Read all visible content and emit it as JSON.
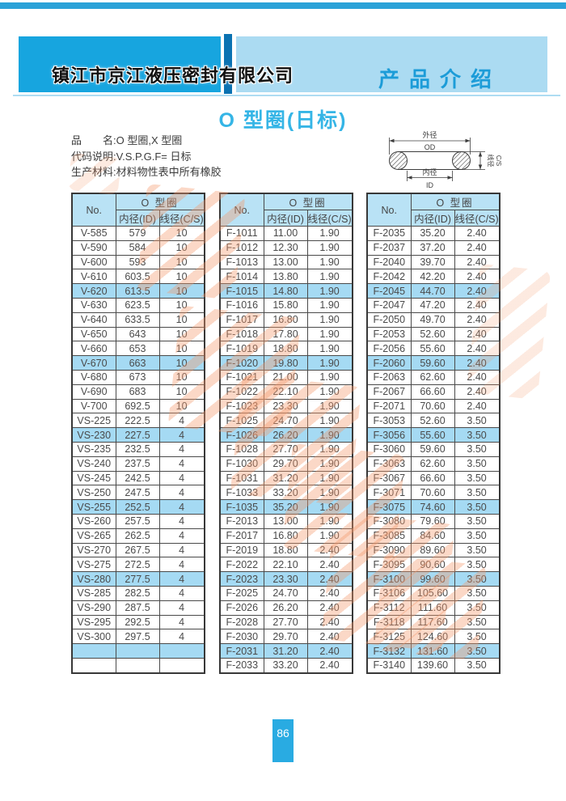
{
  "header": {
    "company_name": "镇江市京江液压密封有限公司",
    "section_title": "产品介绍"
  },
  "page_title": "O 型圈(日标)",
  "info_lines": [
    "品　　名:O 型圈,X 型圈",
    "代码说明:V.S.P.G.F= 日标",
    "生产材料:材料物性表中所有橡胶"
  ],
  "diagram": {
    "outer_label": "外径",
    "outer_abbr": "OD",
    "inner_label": "内径",
    "inner_abbr": "ID",
    "cs_label": "线径",
    "cs_abbr": "C/S"
  },
  "table_header": {
    "no": "No.",
    "group": "O 型圈",
    "id": "内径(ID)",
    "cs": "线径(C/S)"
  },
  "tables": [
    {
      "rows": [
        [
          "V-585",
          "579",
          "10"
        ],
        [
          "V-590",
          "584",
          "10"
        ],
        [
          "V-600",
          "593",
          "10"
        ],
        [
          "V-610",
          "603.5",
          "10"
        ],
        [
          "V-620",
          "613.5",
          "10"
        ],
        [
          "V-630",
          "623.5",
          "10"
        ],
        [
          "V-640",
          "633.5",
          "10"
        ],
        [
          "V-650",
          "643",
          "10"
        ],
        [
          "V-660",
          "653",
          "10"
        ],
        [
          "V-670",
          "663",
          "10"
        ],
        [
          "V-680",
          "673",
          "10"
        ],
        [
          "V-690",
          "683",
          "10"
        ],
        [
          "V-700",
          "692.5",
          "10"
        ],
        [
          "VS-225",
          "222.5",
          "4"
        ],
        [
          "VS-230",
          "227.5",
          "4"
        ],
        [
          "VS-235",
          "232.5",
          "4"
        ],
        [
          "VS-240",
          "237.5",
          "4"
        ],
        [
          "VS-245",
          "242.5",
          "4"
        ],
        [
          "VS-250",
          "247.5",
          "4"
        ],
        [
          "VS-255",
          "252.5",
          "4"
        ],
        [
          "VS-260",
          "257.5",
          "4"
        ],
        [
          "VS-265",
          "262.5",
          "4"
        ],
        [
          "VS-270",
          "267.5",
          "4"
        ],
        [
          "VS-275",
          "272.5",
          "4"
        ],
        [
          "VS-280",
          "277.5",
          "4"
        ],
        [
          "VS-285",
          "282.5",
          "4"
        ],
        [
          "VS-290",
          "287.5",
          "4"
        ],
        [
          "VS-295",
          "292.5",
          "4"
        ],
        [
          "VS-300",
          "297.5",
          "4"
        ],
        [
          "",
          "",
          ""
        ],
        [
          "",
          "",
          ""
        ]
      ]
    },
    {
      "rows": [
        [
          "F-1011",
          "11.00",
          "1.90"
        ],
        [
          "F-1012",
          "12.30",
          "1.90"
        ],
        [
          "F-1013",
          "13.00",
          "1.90"
        ],
        [
          "F-1014",
          "13.80",
          "1.90"
        ],
        [
          "F-1015",
          "14.80",
          "1.90"
        ],
        [
          "F-1016",
          "15.80",
          "1.90"
        ],
        [
          "F-1017",
          "16.80",
          "1.90"
        ],
        [
          "F-1018",
          "17.80",
          "1.90"
        ],
        [
          "F-1019",
          "18.80",
          "1.90"
        ],
        [
          "F-1020",
          "19.80",
          "1.90"
        ],
        [
          "F-1021",
          "21.00",
          "1.90"
        ],
        [
          "F-1022",
          "22.10",
          "1.90"
        ],
        [
          "F-1023",
          "23.30",
          "1.90"
        ],
        [
          "F-1025",
          "24.70",
          "1.90"
        ],
        [
          "F-1026",
          "26.20",
          "1.90"
        ],
        [
          "F-1028",
          "27.70",
          "1.90"
        ],
        [
          "F-1030",
          "29.70",
          "1.90"
        ],
        [
          "F-1031",
          "31.20",
          "1.90"
        ],
        [
          "F-1033",
          "33.20",
          "1.90"
        ],
        [
          "F-1035",
          "35.20",
          "1.90"
        ],
        [
          "F-2013",
          "13.00",
          "1.90"
        ],
        [
          "F-2017",
          "16.80",
          "1.90"
        ],
        [
          "F-2019",
          "18.80",
          "2.40"
        ],
        [
          "F-2022",
          "22.10",
          "2.40"
        ],
        [
          "F-2023",
          "23.30",
          "2.40"
        ],
        [
          "F-2025",
          "24.70",
          "2.40"
        ],
        [
          "F-2026",
          "26.20",
          "2.40"
        ],
        [
          "F-2028",
          "27.70",
          "2.40"
        ],
        [
          "F-2030",
          "29.70",
          "2.40"
        ],
        [
          "F-2031",
          "31.20",
          "2.40"
        ],
        [
          "F-2033",
          "33.20",
          "2.40"
        ]
      ]
    },
    {
      "rows": [
        [
          "F-2035",
          "35.20",
          "2.40"
        ],
        [
          "F-2037",
          "37.20",
          "2.40"
        ],
        [
          "F-2040",
          "39.70",
          "2.40"
        ],
        [
          "F-2042",
          "42.20",
          "2.40"
        ],
        [
          "F-2045",
          "44.70",
          "2.40"
        ],
        [
          "F-2047",
          "47.20",
          "2.40"
        ],
        [
          "F-2050",
          "49.70",
          "2.40"
        ],
        [
          "F-2053",
          "52.60",
          "2.40"
        ],
        [
          "F-2056",
          "55.60",
          "2.40"
        ],
        [
          "F-2060",
          "59.60",
          "2.40"
        ],
        [
          "F-2063",
          "62.60",
          "2.40"
        ],
        [
          "F-2067",
          "66.60",
          "2.40"
        ],
        [
          "F-2071",
          "70.60",
          "2.40"
        ],
        [
          "F-3053",
          "52.60",
          "3.50"
        ],
        [
          "F-3056",
          "55.60",
          "3.50"
        ],
        [
          "F-3060",
          "59.60",
          "3.50"
        ],
        [
          "F-3063",
          "62.60",
          "3.50"
        ],
        [
          "F-3067",
          "66.60",
          "3.50"
        ],
        [
          "F-3071",
          "70.60",
          "3.50"
        ],
        [
          "F-3075",
          "74.60",
          "3.50"
        ],
        [
          "F-3080",
          "79.60",
          "3.50"
        ],
        [
          "F-3085",
          "84.60",
          "3.50"
        ],
        [
          "F-3090",
          "89.60",
          "3.50"
        ],
        [
          "F-3095",
          "90.60",
          "3.50"
        ],
        [
          "F-3100",
          "99.60",
          "3.50"
        ],
        [
          "F-3106",
          "105.60",
          "3.50"
        ],
        [
          "F-3112",
          "111.60",
          "3.50"
        ],
        [
          "F-3118",
          "117.60",
          "3.50"
        ],
        [
          "F-3125",
          "124.60",
          "3.50"
        ],
        [
          "F-3132",
          "131.60",
          "3.50"
        ],
        [
          "F-3140",
          "139.60",
          "3.50"
        ]
      ]
    }
  ],
  "page_number": "86",
  "colors": {
    "top_bar": "#2BA2D8",
    "banner_left": "#17A5DF",
    "banner_divider": "#0B72B2",
    "banner_right": "#ABDBF2",
    "section_title_color": "#1C9CD8",
    "page_title_color": "#35B5E6",
    "table_header_bg": "#B9E2F5",
    "row_highlight_bg": "#A5DAF3",
    "page_number_bg": "#29ABE2",
    "watermark_color": "#F4986B"
  }
}
